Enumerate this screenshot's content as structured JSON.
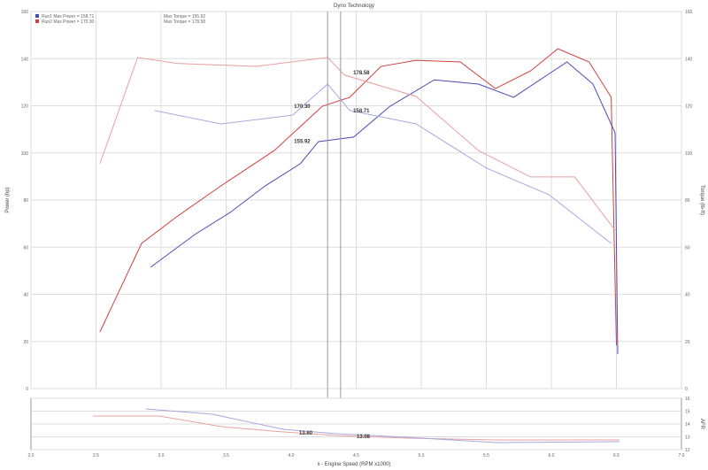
{
  "chart_data": {
    "type": "line",
    "title": "Dyno Technology",
    "xlabel": "x - Engine Speed (RPM x1000)",
    "ylabel": "Power (hp)",
    "y2label": "Torque (lb-ft)",
    "xlim": [
      2.0,
      7.0
    ],
    "ylim": [
      0,
      160
    ],
    "x_ticks": [
      "2.0",
      "2.5",
      "3.0",
      "3.5",
      "4.0",
      "4.5",
      "5.0",
      "5.5",
      "6.0",
      "6.5",
      "7.0"
    ],
    "y_ticks": [
      "0",
      "20",
      "40",
      "60",
      "80",
      "100",
      "120",
      "140",
      "160"
    ],
    "y2_ticks": [
      "0",
      "20",
      "40",
      "60",
      "80",
      "100",
      "120",
      "140",
      "160"
    ],
    "grid": true,
    "legend_placement": "top-left",
    "legend": [
      {
        "label": "Run1 Max Power = 158.71",
        "label2": "Max Torque = 155.92",
        "color": "#4a4ab8"
      },
      {
        "label": "Run2 Max Power = 170.30",
        "label2": "Max Torque = 178.58",
        "color": "#d04040"
      }
    ],
    "cursor_x": [
      4.28,
      4.38
    ],
    "annotations": [
      {
        "text": "178.58",
        "x": 4.45,
        "y": 134
      },
      {
        "text": "170.30",
        "x": 4.24,
        "y": 119.8
      },
      {
        "text": "158.71",
        "x": 4.45,
        "y": 118
      },
      {
        "text": "155.92",
        "x": 4.24,
        "y": 105
      }
    ],
    "series": [
      {
        "key": "red-power",
        "color": "#d04040",
        "x": [
          2.53,
          2.85,
          3.12,
          3.46,
          3.87,
          4.24,
          4.45,
          4.69,
          4.96,
          5.3,
          5.57,
          5.84,
          6.05,
          6.29,
          6.46,
          6.5
        ],
        "y": [
          24,
          61.6,
          72.9,
          86,
          101,
          119.8,
          123.6,
          136.7,
          139.3,
          138.6,
          127.3,
          134.8,
          144.2,
          138.6,
          123.6,
          18.4
        ]
      },
      {
        "key": "blue-power",
        "color": "#4a4ab8",
        "x": [
          2.92,
          3.26,
          3.53,
          3.8,
          4.07,
          4.21,
          4.48,
          4.76,
          5.1,
          5.44,
          5.71,
          6.12,
          6.32,
          6.49,
          6.51
        ],
        "y": [
          51.5,
          65.4,
          74.7,
          86,
          95.4,
          104.8,
          106.7,
          119.8,
          131,
          129.2,
          123.6,
          138.6,
          129.2,
          108.5,
          14.6
        ]
      },
      {
        "key": "red-torque",
        "color": "#e8a0a0",
        "x": [
          2.53,
          2.82,
          3.12,
          3.73,
          4.28,
          4.41,
          4.96,
          5.44,
          5.84,
          6.18,
          6.49
        ],
        "y": [
          95.4,
          140.5,
          138,
          136.7,
          140.5,
          133,
          124,
          101,
          89.8,
          89.8,
          67.2
        ]
      },
      {
        "key": "blue-torque",
        "color": "#a8a8e0",
        "x": [
          2.95,
          3.46,
          4.01,
          4.28,
          4.45,
          4.96,
          5.5,
          5.98,
          6.46
        ],
        "y": [
          118,
          112.3,
          116,
          129.2,
          118,
          112.3,
          93.6,
          82.3,
          61.6
        ]
      }
    ],
    "afr_chart": {
      "ylabel": "AFR",
      "y_ticks": [
        "12",
        "13",
        "14",
        "15",
        "16"
      ],
      "annotations": [
        "13.60",
        "13.08"
      ]
    }
  }
}
